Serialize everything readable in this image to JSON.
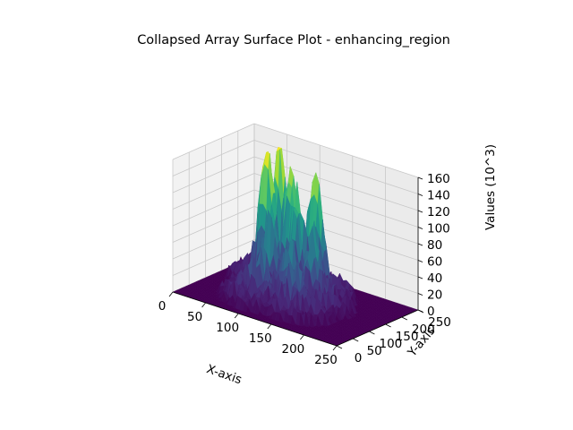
{
  "chart_data": {
    "type": "surface",
    "title": "Collapsed Array Surface Plot - enhancing_region",
    "xlabel": "X-axis",
    "ylabel": "Y-axis",
    "zlabel": "Values (10^3)",
    "xlim": [
      0,
      250
    ],
    "ylim": [
      0,
      250
    ],
    "zlim": [
      0,
      160
    ],
    "x_ticks": [
      "0",
      "50",
      "100",
      "150",
      "200",
      "250"
    ],
    "y_ticks": [
      "0",
      "50",
      "100",
      "150",
      "200",
      "250"
    ],
    "z_ticks": [
      "0",
      "20",
      "40",
      "60",
      "80",
      "100",
      "120",
      "140",
      "160"
    ],
    "colormap": "viridis",
    "grid": true,
    "grid_size": 240,
    "baseline_value": 0,
    "peaks": [
      {
        "x": 70,
        "y": 150,
        "value": 158
      },
      {
        "x": 70,
        "y": 185,
        "value": 145
      },
      {
        "x": 130,
        "y": 175,
        "value": 125
      },
      {
        "x": 95,
        "y": 170,
        "value": 110
      },
      {
        "x": 110,
        "y": 160,
        "value": 100
      },
      {
        "x": 90,
        "y": 120,
        "value": 75
      },
      {
        "x": 150,
        "y": 130,
        "value": 60
      },
      {
        "x": 130,
        "y": 100,
        "value": 45
      },
      {
        "x": 95,
        "y": 75,
        "value": 35
      },
      {
        "x": 145,
        "y": 80,
        "value": 25
      }
    ]
  }
}
